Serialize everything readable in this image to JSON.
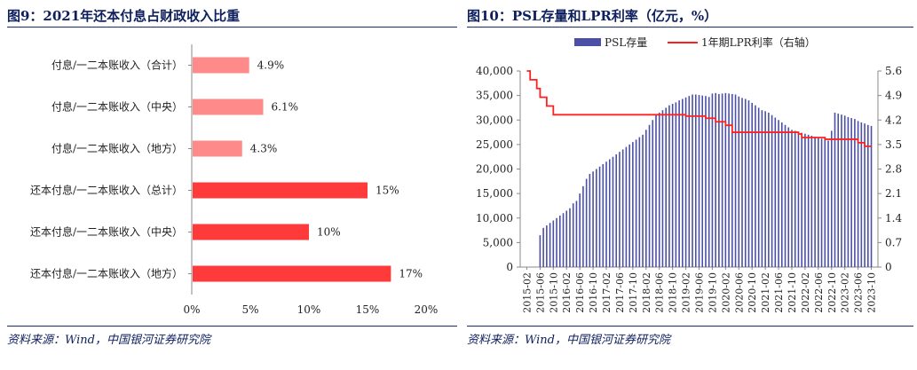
{
  "left_panel": {
    "title": "图9：2021年还本付息占财政收入比重",
    "source": "资料来源：Wind，中国银河证券研究院"
  },
  "right_panel": {
    "title": "图10：PSL存量和LPR利率（亿元，%）",
    "source": "资料来源：Wind，中国银河证券研究院"
  },
  "colors": {
    "light_bar": "#ff8a8a",
    "dark_bar": "#ff3a3a",
    "psl_bar": "#4b4fa6",
    "lpr_line": "#ff2020"
  },
  "chart_data": [
    {
      "type": "bar",
      "orientation": "horizontal",
      "categories": [
        "付息/一二本账收入（合计）",
        "付息/一二本账收入（中央）",
        "付息/一二本账收入（地方）",
        "还本付息/一二本账收入（总计）",
        "还本付息/一二本账收入（中央）",
        "还本付息/一二本账收入（地方）"
      ],
      "values": [
        4.9,
        6.1,
        4.3,
        15,
        10,
        17
      ],
      "value_labels": [
        "4.9%",
        "6.1%",
        "4.3%",
        "15%",
        "10%",
        "17%"
      ],
      "xlim": [
        0,
        20
      ],
      "xticks": [
        "0%",
        "5%",
        "10%",
        "15%",
        "20%"
      ]
    },
    {
      "type": "bar+line",
      "legend": [
        "PSL存量",
        "1年期LPR利率（右轴）"
      ],
      "legend_position": "top",
      "ylim": [
        0,
        40000
      ],
      "yticks": [
        "0",
        "5,000",
        "10,000",
        "15,000",
        "20,000",
        "25,000",
        "30,000",
        "35,000",
        "40,000"
      ],
      "y2lim": [
        0,
        5.6
      ],
      "y2ticks": [
        "0",
        "0.7",
        "1.4",
        "2.1",
        "2.8",
        "3.5",
        "4.2",
        "4.9",
        "5.6"
      ],
      "xticks": [
        "2015-02",
        "2015-06",
        "2015-10",
        "2016-02",
        "2016-06",
        "2016-10",
        "2017-02",
        "2017-06",
        "2017-10",
        "2018-02",
        "2018-06",
        "2018-10",
        "2019-02",
        "2019-06",
        "2019-10",
        "2020-02",
        "2020-06",
        "2020-10",
        "2021-02",
        "2021-06",
        "2021-10",
        "2022-02",
        "2022-06",
        "2022-10",
        "2023-02",
        "2023-06",
        "2023-10"
      ],
      "series": [
        {
          "name": "PSL存量",
          "type": "bar",
          "values": [
            0,
            0,
            0,
            0,
            6500,
            8000,
            8500,
            9000,
            9500,
            10000,
            10500,
            11000,
            11500,
            12000,
            13000,
            13500,
            15000,
            16500,
            18000,
            19000,
            19500,
            20000,
            20500,
            21000,
            21500,
            22000,
            22500,
            23000,
            23500,
            24000,
            24500,
            25000,
            25500,
            26000,
            26500,
            27000,
            28000,
            29000,
            30000,
            31000,
            31500,
            32000,
            32500,
            33000,
            33300,
            33600,
            34000,
            34300,
            34600,
            34900,
            35200,
            35200,
            35100,
            35000,
            34900,
            34700,
            35400,
            35500,
            35300,
            35400,
            35500,
            35400,
            35300,
            35200,
            34800,
            34500,
            34300,
            34000,
            33500,
            33000,
            32500,
            32000,
            31800,
            31500,
            31000,
            30500,
            30000,
            29500,
            29000,
            28500,
            28000,
            27800,
            27600,
            27400,
            27200,
            27000,
            26800,
            26600,
            26400,
            26200,
            26000,
            25800,
            27800,
            31500,
            31300,
            31100,
            30900,
            30600,
            30400,
            30200,
            29800,
            29500,
            29300,
            29000,
            28800
          ]
        },
        {
          "name": "1年期LPR利率（右轴）",
          "type": "line",
          "x": [
            "2015-02",
            "2015-03",
            "2015-05",
            "2015-06",
            "2015-08",
            "2015-10",
            "2016-02",
            "2017-02",
            "2018-02",
            "2019-02",
            "2019-08",
            "2019-11",
            "2020-02",
            "2020-04",
            "2021-02",
            "2021-12",
            "2022-01",
            "2022-08",
            "2023-06",
            "2023-08",
            "2023-10"
          ],
          "values": [
            5.6,
            5.35,
            5.1,
            4.85,
            4.6,
            4.35,
            4.35,
            4.35,
            4.35,
            4.31,
            4.25,
            4.15,
            4.05,
            3.85,
            3.85,
            3.8,
            3.7,
            3.65,
            3.55,
            3.45,
            3.45
          ]
        }
      ]
    }
  ]
}
